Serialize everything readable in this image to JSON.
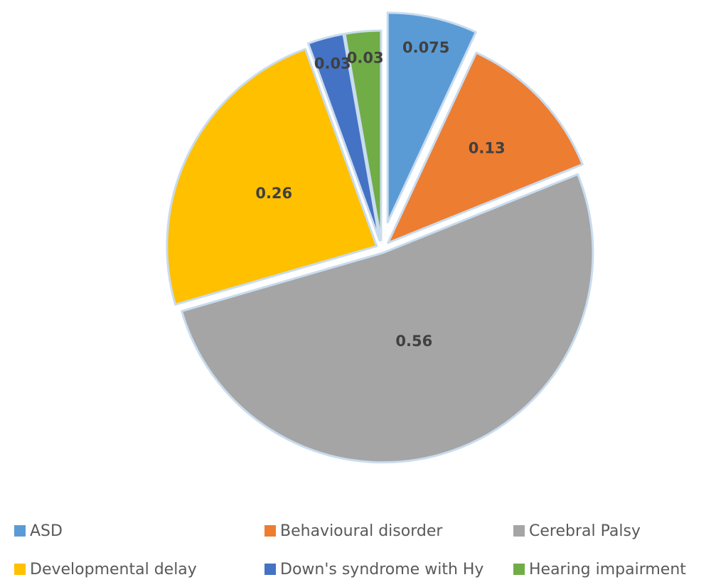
{
  "chart_data": {
    "type": "pie",
    "title": "",
    "legend_position": "bottom",
    "categories": [
      "ASD",
      "Behavioural disorder",
      "Cerebral Palsy",
      "Developmental delay",
      "Down's syndrome with Hy",
      "Hearing impairment"
    ],
    "values": [
      0.075,
      0.13,
      0.56,
      0.26,
      0.03,
      0.03
    ],
    "data_labels": [
      "0.075",
      "0.13",
      "0.56",
      "0.26",
      "0.03",
      "0.03"
    ],
    "colors": [
      "#5b9bd5",
      "#ed7d31",
      "#a5a5a5",
      "#ffc000",
      "#4472c4",
      "#70ad47"
    ],
    "exploded": true
  }
}
